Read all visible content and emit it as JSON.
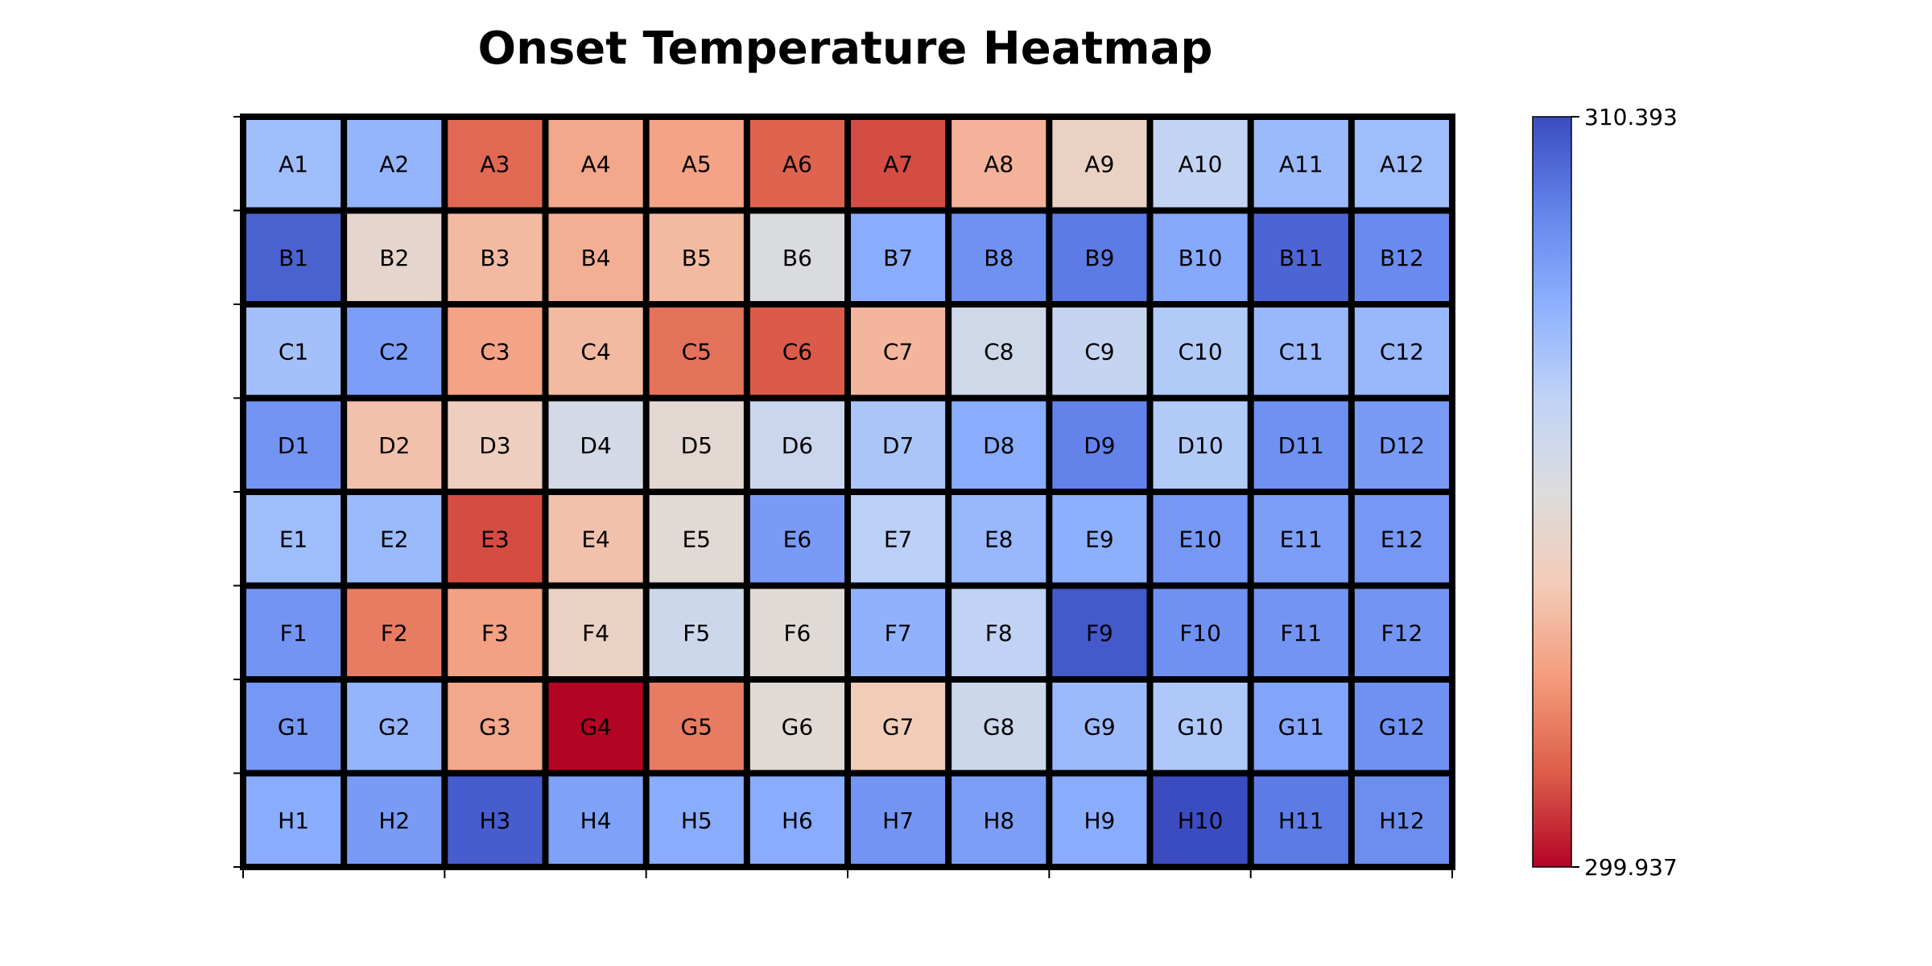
{
  "chart_data": {
    "type": "heatmap",
    "title": "Onset Temperature Heatmap",
    "xlabel": "",
    "ylabel": "",
    "rows": [
      "A",
      "B",
      "C",
      "D",
      "E",
      "F",
      "G",
      "H"
    ],
    "columns": [
      "1",
      "2",
      "3",
      "4",
      "5",
      "6",
      "7",
      "8",
      "9",
      "10",
      "11",
      "12"
    ],
    "cell_labels": [
      [
        "A1",
        "A2",
        "A3",
        "A4",
        "A5",
        "A6",
        "A7",
        "A8",
        "A9",
        "A10",
        "A11",
        "A12"
      ],
      [
        "B1",
        "B2",
        "B3",
        "B4",
        "B5",
        "B6",
        "B7",
        "B8",
        "B9",
        "B10",
        "B11",
        "B12"
      ],
      [
        "C1",
        "C2",
        "C3",
        "C4",
        "C5",
        "C6",
        "C7",
        "C8",
        "C9",
        "C10",
        "C11",
        "C12"
      ],
      [
        "D1",
        "D2",
        "D3",
        "D4",
        "D5",
        "D6",
        "D7",
        "D8",
        "D9",
        "D10",
        "D11",
        "D12"
      ],
      [
        "E1",
        "E2",
        "E3",
        "E4",
        "E5",
        "E6",
        "E7",
        "E8",
        "E9",
        "E10",
        "E11",
        "E12"
      ],
      [
        "F1",
        "F2",
        "F3",
        "F4",
        "F5",
        "F6",
        "F7",
        "F8",
        "F9",
        "F10",
        "F11",
        "F12"
      ],
      [
        "G1",
        "G2",
        "G3",
        "G4",
        "G5",
        "G6",
        "G7",
        "G8",
        "G9",
        "G10",
        "G11",
        "G12"
      ],
      [
        "H1",
        "H2",
        "H3",
        "H4",
        "H5",
        "H6",
        "H7",
        "H8",
        "H9",
        "H10",
        "H11",
        "H12"
      ]
    ],
    "values": [
      [
        307.3,
        307.6,
        301.5,
        302.9,
        302.8,
        301.4,
        301.0,
        303.2,
        304.3,
        306.3,
        307.4,
        307.3
      ],
      [
        309.9,
        304.6,
        303.4,
        303.1,
        303.4,
        305.3,
        307.9,
        308.7,
        309.3,
        308.0,
        309.8,
        308.9
      ],
      [
        307.2,
        308.3,
        302.8,
        303.4,
        301.7,
        301.2,
        303.3,
        305.8,
        306.2,
        306.8,
        307.5,
        307.5
      ],
      [
        308.6,
        303.6,
        304.1,
        305.6,
        304.8,
        306.0,
        307.0,
        307.9,
        309.1,
        306.8,
        308.7,
        308.4
      ],
      [
        307.3,
        307.4,
        301.0,
        303.6,
        304.9,
        308.4,
        306.6,
        307.5,
        307.8,
        308.5,
        308.3,
        308.5
      ],
      [
        308.6,
        301.9,
        302.7,
        304.3,
        305.9,
        305.0,
        307.7,
        306.4,
        310.1,
        308.7,
        308.6,
        308.6
      ],
      [
        308.5,
        307.6,
        302.9,
        299.937,
        301.9,
        304.9,
        303.9,
        305.9,
        307.4,
        306.9,
        308.1,
        308.7
      ],
      [
        307.9,
        308.4,
        310.0,
        308.2,
        307.9,
        307.9,
        308.6,
        308.3,
        307.9,
        310.393,
        309.3,
        308.8
      ]
    ],
    "vmin": 299.937,
    "vmax": 310.393,
    "colormap": "coolwarm",
    "colormap_stops": [
      "#b40426",
      "#dc5d4a",
      "#f49a7b",
      "#f2cbb7",
      "#dddcdc",
      "#bfd3f6",
      "#8db0fe",
      "#6384eb",
      "#3b4cc0"
    ],
    "colorbar": {
      "min_label": "299.937",
      "max_label": "310.393",
      "orientation": "vertical",
      "placement": "right"
    },
    "cell_border_color": "#000000",
    "cell_text_color": "#000000",
    "grid": false,
    "x_tick_labels_shown": false,
    "y_tick_labels_shown": false
  }
}
